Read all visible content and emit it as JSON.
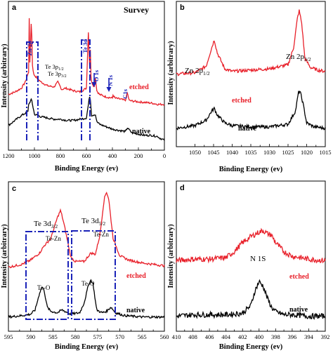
{
  "colors": {
    "etched": "#e8202a",
    "native": "#000000",
    "box": "#1a22b8"
  },
  "chart_data": [
    {
      "panel": "a",
      "type": "line",
      "title": "Survey",
      "xlabel": "Binding Energy (ev)",
      "ylabel": "Intensity (arbitrary)",
      "xlim": [
        1200,
        0
      ],
      "xticks": [
        "1200",
        "1000",
        "800",
        "600",
        "400",
        "200",
        "0"
      ],
      "series": [
        {
          "name": "etched",
          "color": "#e8202a",
          "x": [
            1200,
            1150,
            1100,
            1070,
            1045,
            1040,
            1035,
            1022,
            1018,
            1005,
            950,
            900,
            850,
            820,
            790,
            760,
            700,
            650,
            600,
            585,
            575,
            572,
            565,
            560,
            540,
            531,
            520,
            500,
            450,
            400,
            398,
            380,
            330,
            300,
            285,
            270,
            200,
            100,
            50,
            0
          ],
          "y": [
            0.3,
            0.32,
            0.35,
            0.4,
            0.48,
            0.92,
            0.55,
            0.97,
            0.56,
            0.46,
            0.4,
            0.37,
            0.36,
            0.4,
            0.34,
            0.35,
            0.33,
            0.32,
            0.35,
            0.8,
            0.52,
            0.75,
            0.45,
            0.4,
            0.36,
            0.44,
            0.33,
            0.3,
            0.28,
            0.27,
            0.3,
            0.27,
            0.26,
            0.25,
            0.31,
            0.25,
            0.24,
            0.23,
            0.22,
            0.22
          ]
        },
        {
          "name": "native",
          "color": "#000000",
          "x": [
            1200,
            1150,
            1100,
            1050,
            1045,
            1022,
            1000,
            950,
            900,
            850,
            800,
            750,
            700,
            650,
            600,
            576,
            573,
            560,
            531,
            520,
            500,
            450,
            400,
            350,
            300,
            285,
            250,
            200,
            150,
            100,
            50,
            40,
            20,
            0
          ],
          "y": [
            0.05,
            0.09,
            0.13,
            0.16,
            0.22,
            0.26,
            0.14,
            0.12,
            0.11,
            0.1,
            0.1,
            0.09,
            0.09,
            0.1,
            0.11,
            0.28,
            0.3,
            0.13,
            0.14,
            0.08,
            0.06,
            0.04,
            0.02,
            0.01,
            0.0,
            0.03,
            -0.01,
            -0.02,
            -0.03,
            -0.03,
            -0.04,
            -0.05,
            -0.06,
            -0.07
          ]
        }
      ],
      "annotations": [
        "Zn 2p",
        "Te 3p1/2",
        "Te 3p3/2",
        "Te 3d",
        "O 1s",
        "N 1s",
        "C1s",
        "etched",
        "native"
      ]
    },
    {
      "panel": "b",
      "type": "line",
      "xlabel": "Binding Energy (ev)",
      "ylabel": "Intensity (arbitrary)",
      "xlim": [
        1055,
        1015
      ],
      "xticks": [
        "1050",
        "1045",
        "1040",
        "1035",
        "1030",
        "1025",
        "1020",
        "1015"
      ],
      "series": [
        {
          "name": "etched",
          "color": "#e8202a",
          "x": [
            1055,
            1050,
            1047,
            1045.5,
            1044.8,
            1044,
            1042,
            1040,
            1035,
            1030,
            1025,
            1023.5,
            1022.5,
            1022,
            1021.3,
            1020.5,
            1019,
            1017,
            1015
          ],
          "y": [
            0.5,
            0.51,
            0.56,
            0.7,
            0.76,
            0.66,
            0.54,
            0.52,
            0.53,
            0.54,
            0.57,
            0.7,
            0.92,
            0.98,
            0.88,
            0.62,
            0.55,
            0.53,
            0.52
          ]
        },
        {
          "name": "native",
          "color": "#000000",
          "x": [
            1055,
            1050,
            1047,
            1045.5,
            1044.8,
            1044,
            1042,
            1040,
            1035,
            1030,
            1025,
            1023,
            1022.2,
            1021.8,
            1021,
            1020,
            1018,
            1015
          ],
          "y": [
            0.09,
            0.11,
            0.15,
            0.22,
            0.24,
            0.19,
            0.13,
            0.11,
            0.1,
            0.1,
            0.12,
            0.22,
            0.36,
            0.37,
            0.28,
            0.13,
            0.1,
            0.09
          ]
        }
      ],
      "annotations": [
        "Zn 2p1/2",
        "Zn 2p3/2",
        "etched",
        "native"
      ]
    },
    {
      "panel": "c",
      "type": "line",
      "xlabel": "Binding Energy (ev)",
      "ylabel": "Intensity (arbitrary)",
      "xlim": [
        595,
        560
      ],
      "xticks": [
        "595",
        "590",
        "585",
        "580",
        "575",
        "570",
        "565",
        "560"
      ],
      "series": [
        {
          "name": "etched",
          "color": "#e8202a",
          "x": [
            595,
            592,
            590,
            588,
            587,
            585.5,
            584,
            583.3,
            582.5,
            581,
            580,
            578,
            576.5,
            575.5,
            574.5,
            573.5,
            573,
            572.5,
            571.5,
            570,
            568,
            565,
            560
          ],
          "y": [
            0.4,
            0.42,
            0.45,
            0.5,
            0.55,
            0.6,
            0.75,
            0.8,
            0.7,
            0.47,
            0.44,
            0.44,
            0.5,
            0.49,
            0.62,
            0.88,
            0.93,
            0.88,
            0.6,
            0.48,
            0.45,
            0.43,
            0.41
          ]
        },
        {
          "name": "native",
          "color": "#000000",
          "x": [
            595,
            592,
            590,
            589,
            588,
            587.5,
            587,
            586.3,
            585.5,
            584,
            583,
            581,
            579,
            578,
            577,
            576.5,
            576,
            575.2,
            574,
            573,
            572,
            571,
            569,
            565,
            560
          ],
          "y": [
            0.05,
            0.06,
            0.07,
            0.1,
            0.22,
            0.26,
            0.24,
            0.12,
            0.09,
            0.08,
            0.1,
            0.07,
            0.08,
            0.15,
            0.28,
            0.31,
            0.28,
            0.1,
            0.08,
            0.09,
            0.12,
            0.08,
            0.06,
            0.05,
            0.05
          ]
        }
      ],
      "annotations": [
        "Te 3d3/2",
        "Te 3d5/2",
        "Te-Zn",
        "Te-Zn",
        "Te-O",
        "Te-O",
        "etched",
        "native"
      ]
    },
    {
      "panel": "d",
      "type": "line",
      "xlabel": "Binding Energy (ev)",
      "ylabel": "Intensity (arbitrary)",
      "xlim": [
        410,
        392
      ],
      "xticks": [
        "410",
        "408",
        "406",
        "404",
        "402",
        "400",
        "398",
        "396",
        "394",
        "392"
      ],
      "series": [
        {
          "name": "etched",
          "color": "#e8202a",
          "x": [
            410,
            408,
            406,
            404,
            403,
            402,
            401,
            400,
            399.5,
            399,
            398.5,
            398,
            397,
            396,
            395,
            394,
            392
          ],
          "y": [
            0.42,
            0.43,
            0.43,
            0.44,
            0.48,
            0.54,
            0.58,
            0.61,
            0.62,
            0.6,
            0.59,
            0.54,
            0.48,
            0.45,
            0.44,
            0.43,
            0.42
          ]
        },
        {
          "name": "native",
          "color": "#000000",
          "x": [
            410,
            408,
            406,
            404,
            402,
            401,
            400.5,
            400,
            399.5,
            399,
            398.5,
            398,
            397,
            396,
            394,
            392
          ],
          "y": [
            0.05,
            0.06,
            0.06,
            0.06,
            0.07,
            0.12,
            0.22,
            0.28,
            0.25,
            0.17,
            0.11,
            0.08,
            0.06,
            0.06,
            0.05,
            0.05
          ]
        }
      ],
      "annotations": [
        "N 1S",
        "etched",
        "native"
      ]
    }
  ],
  "labels": {
    "a": {
      "letter": "a",
      "title": "Survey",
      "zn2p": "Zn 2p",
      "te3p12": "Te 3p1/2",
      "te3p32": "Te 3p3/2",
      "te3d": "Te 3d",
      "o1s": "O 1s",
      "n1s": "N 1s",
      "c1s": "C1s",
      "etched": "etched",
      "native": "native",
      "xlabel": "Binding Energy (ev)",
      "ylabel": "Intensity (arbitrary)"
    },
    "b": {
      "letter": "b",
      "zn2p12": "Zn 2p1/2",
      "zn2p32": "Zn 2p3/2",
      "etched": "etched",
      "native": "native",
      "xlabel": "Binding Energy (ev)",
      "ylabel": "Intensity (arbitrary)"
    },
    "c": {
      "letter": "c",
      "te3d32": "Te 3d3/2",
      "te3d52": "Te 3d5/2",
      "tezn1": "Te-Zn",
      "tezn2": "Te-Zn",
      "teo1": "Te-O",
      "teo2": "Te-O",
      "etched": "etched",
      "native": "native",
      "xlabel": "Binding Energy (ev)",
      "ylabel": "Intensity (arbitrary)"
    },
    "d": {
      "letter": "d",
      "n1s": "N 1S",
      "etched": "etched",
      "native": "native",
      "xlabel": "Binding Energy (ev)",
      "ylabel": "Intensity (arbitrary)"
    }
  }
}
